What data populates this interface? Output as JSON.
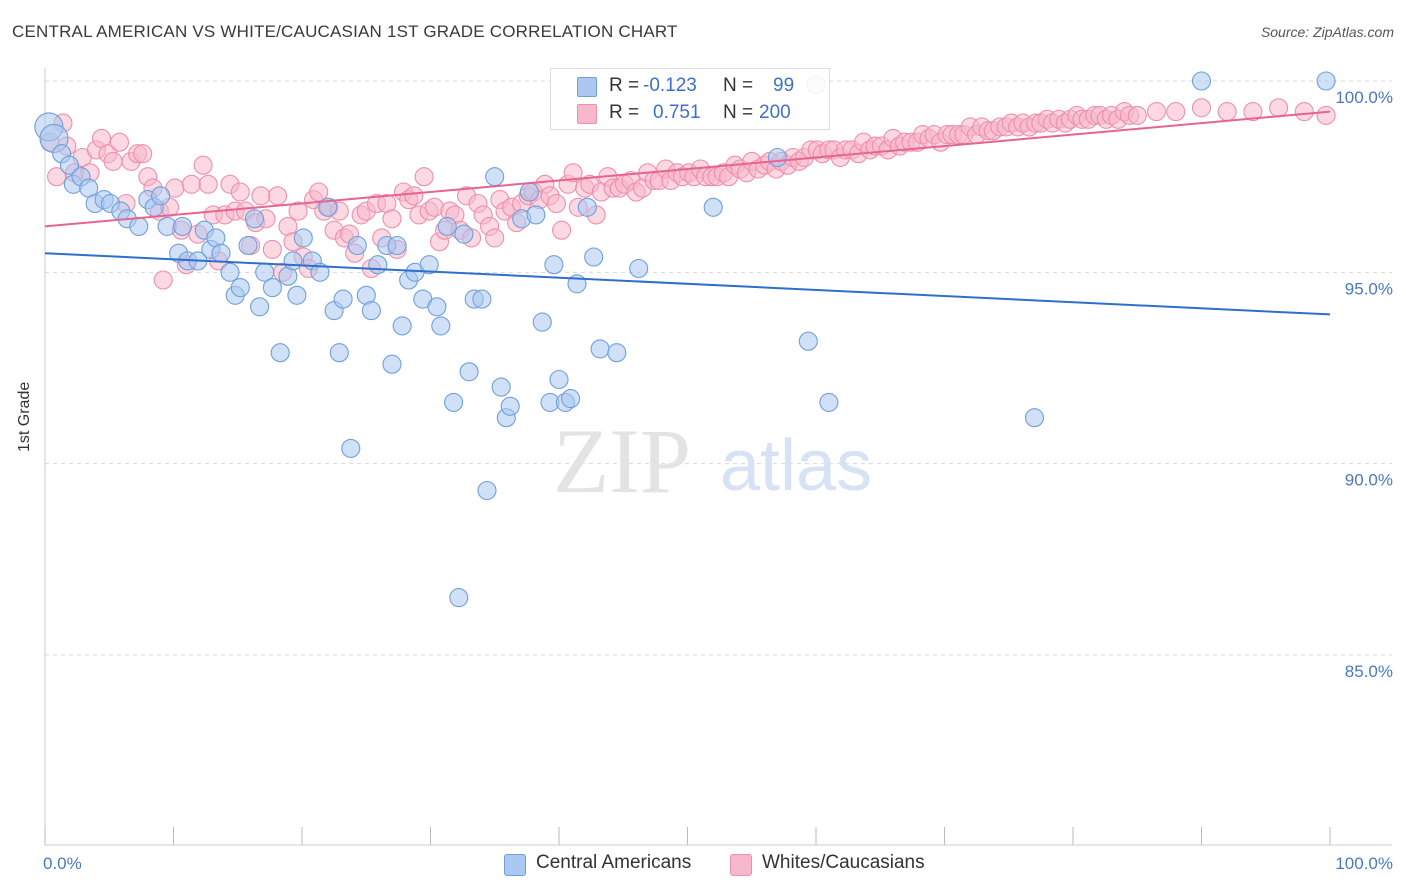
{
  "title": "CENTRAL AMERICAN VS WHITE/CAUCASIAN 1ST GRADE CORRELATION CHART",
  "source": "Source: ZipAtlas.com",
  "watermark": {
    "zip": "ZIP",
    "atlas": "atlas"
  },
  "legend_top": {
    "blue": {
      "r_label": "R =",
      "r_value": "-0.123",
      "n_label": "N =",
      "n_value": "99"
    },
    "pink": {
      "r_label": "R =",
      "r_value": "0.751",
      "n_label": "N =",
      "n_value": "200"
    }
  },
  "legend_bottom": {
    "blue": "Central Americans",
    "pink": "Whites/Caucasians"
  },
  "colors": {
    "blue_fill": "#aac8f0",
    "blue_stroke": "#6f9fdc",
    "blue_line": "#2f6fcc",
    "pink_fill": "#f7b8cb",
    "pink_stroke": "#ee8fab",
    "pink_line": "#e8638d",
    "tick_label": "#4a78c4",
    "grid": "#d8d8d8"
  },
  "chart_data": {
    "type": "scatter",
    "title": "CENTRAL AMERICAN VS WHITE/CAUCASIAN 1ST GRADE CORRELATION CHART",
    "xlabel": "",
    "ylabel": "1st Grade",
    "xlim": [
      0,
      100
    ],
    "ylim": [
      80.5,
      100.8
    ],
    "x_tick_labels": [
      "0.0%",
      "100.0%"
    ],
    "y_ticks": [
      85,
      90,
      95,
      100
    ],
    "y_tick_labels": [
      "85.0%",
      "90.0%",
      "95.0%",
      "100.0%"
    ],
    "grid": "horizontal dashed",
    "legend": "bottom-center",
    "series": [
      {
        "name": "Central Americans",
        "color": "#aac8f0",
        "r": -0.123,
        "n": 99,
        "trend": {
          "x": [
            0,
            100
          ],
          "y": [
            95.5,
            93.9
          ]
        },
        "points": [
          [
            0.3,
            98.8
          ],
          [
            0.7,
            98.5
          ],
          [
            1.3,
            98.1
          ],
          [
            1.9,
            97.8
          ],
          [
            2.2,
            97.3
          ],
          [
            2.8,
            97.5
          ],
          [
            3.4,
            97.2
          ],
          [
            3.9,
            96.8
          ],
          [
            4.6,
            96.9
          ],
          [
            5.1,
            96.8
          ],
          [
            5.9,
            96.6
          ],
          [
            6.4,
            96.4
          ],
          [
            7.3,
            96.2
          ],
          [
            8.0,
            96.9
          ],
          [
            8.5,
            96.7
          ],
          [
            9.0,
            97.0
          ],
          [
            9.5,
            96.2
          ],
          [
            10.4,
            95.5
          ],
          [
            10.7,
            96.2
          ],
          [
            11.1,
            95.3
          ],
          [
            11.9,
            95.3
          ],
          [
            12.4,
            96.1
          ],
          [
            12.9,
            95.6
          ],
          [
            13.3,
            95.9
          ],
          [
            13.7,
            95.5
          ],
          [
            14.4,
            95.0
          ],
          [
            14.8,
            94.4
          ],
          [
            15.2,
            94.6
          ],
          [
            15.8,
            95.7
          ],
          [
            16.3,
            96.4
          ],
          [
            16.7,
            94.1
          ],
          [
            17.1,
            95.0
          ],
          [
            17.7,
            94.6
          ],
          [
            18.3,
            92.9
          ],
          [
            18.9,
            94.9
          ],
          [
            19.3,
            95.3
          ],
          [
            19.6,
            94.4
          ],
          [
            20.1,
            95.9
          ],
          [
            20.8,
            95.3
          ],
          [
            21.4,
            95.0
          ],
          [
            22.0,
            96.7
          ],
          [
            22.5,
            94.0
          ],
          [
            22.9,
            92.9
          ],
          [
            23.2,
            94.3
          ],
          [
            23.8,
            90.4
          ],
          [
            24.3,
            95.7
          ],
          [
            25.0,
            94.4
          ],
          [
            25.4,
            94.0
          ],
          [
            25.9,
            95.2
          ],
          [
            26.6,
            95.7
          ],
          [
            27.0,
            92.6
          ],
          [
            27.4,
            95.7
          ],
          [
            27.8,
            93.6
          ],
          [
            28.3,
            94.8
          ],
          [
            28.8,
            95.0
          ],
          [
            29.4,
            94.3
          ],
          [
            29.9,
            95.2
          ],
          [
            30.5,
            94.1
          ],
          [
            30.8,
            93.6
          ],
          [
            31.3,
            96.2
          ],
          [
            31.8,
            91.6
          ],
          [
            32.2,
            86.5
          ],
          [
            32.6,
            96.0
          ],
          [
            33.0,
            92.4
          ],
          [
            33.4,
            94.3
          ],
          [
            34.0,
            94.3
          ],
          [
            34.4,
            89.3
          ],
          [
            35.0,
            97.5
          ],
          [
            35.5,
            92.0
          ],
          [
            35.9,
            91.2
          ],
          [
            36.2,
            91.5
          ],
          [
            37.1,
            96.4
          ],
          [
            37.7,
            97.1
          ],
          [
            38.2,
            96.5
          ],
          [
            38.7,
            93.7
          ],
          [
            39.3,
            91.6
          ],
          [
            39.6,
            95.2
          ],
          [
            40.0,
            92.2
          ],
          [
            40.5,
            91.6
          ],
          [
            40.9,
            91.7
          ],
          [
            41.4,
            94.7
          ],
          [
            42.2,
            96.7
          ],
          [
            42.7,
            95.4
          ],
          [
            43.2,
            93.0
          ],
          [
            44.5,
            92.9
          ],
          [
            46.2,
            95.1
          ],
          [
            49.2,
            100.0
          ],
          [
            52.0,
            96.7
          ],
          [
            57.0,
            98.0
          ],
          [
            59.4,
            93.2
          ],
          [
            60.0,
            99.9
          ],
          [
            61.0,
            91.6
          ],
          [
            77.0,
            91.2
          ],
          [
            90.0,
            100.0
          ],
          [
            99.7,
            100.0
          ]
        ]
      },
      {
        "name": "Whites/Caucasians",
        "color": "#f7b8cb",
        "r": 0.751,
        "n": 200,
        "trend": {
          "x": [
            0,
            100
          ],
          "y": [
            96.2,
            99.2
          ]
        },
        "points": [
          [
            0.4,
            98.4
          ],
          [
            0.9,
            97.5
          ],
          [
            1.4,
            98.9
          ],
          [
            1.7,
            98.3
          ],
          [
            2.3,
            97.6
          ],
          [
            2.9,
            98.0
          ],
          [
            3.5,
            97.6
          ],
          [
            4.0,
            98.2
          ],
          [
            4.4,
            98.5
          ],
          [
            4.9,
            98.1
          ],
          [
            5.3,
            97.9
          ],
          [
            5.8,
            98.4
          ],
          [
            6.3,
            96.8
          ],
          [
            6.7,
            97.9
          ],
          [
            7.2,
            98.1
          ],
          [
            7.6,
            98.1
          ],
          [
            8.0,
            97.5
          ],
          [
            8.4,
            97.2
          ],
          [
            8.9,
            96.6
          ],
          [
            9.2,
            94.8
          ],
          [
            9.7,
            96.7
          ],
          [
            10.1,
            97.2
          ],
          [
            10.6,
            96.1
          ],
          [
            11.0,
            95.2
          ],
          [
            11.4,
            97.3
          ],
          [
            11.9,
            96.0
          ],
          [
            12.3,
            97.8
          ],
          [
            12.7,
            97.3
          ],
          [
            13.1,
            96.5
          ],
          [
            13.5,
            95.3
          ],
          [
            14.0,
            96.5
          ],
          [
            14.4,
            97.3
          ],
          [
            14.8,
            96.6
          ],
          [
            15.2,
            97.1
          ],
          [
            15.6,
            96.6
          ],
          [
            16.0,
            95.7
          ],
          [
            16.4,
            96.3
          ],
          [
            16.8,
            97.0
          ],
          [
            17.2,
            96.4
          ],
          [
            17.7,
            95.6
          ],
          [
            18.1,
            97.0
          ],
          [
            18.5,
            95.0
          ],
          [
            18.9,
            96.2
          ],
          [
            19.3,
            95.8
          ],
          [
            19.7,
            96.6
          ],
          [
            20.1,
            95.4
          ],
          [
            20.5,
            95.1
          ],
          [
            20.9,
            96.9
          ],
          [
            21.3,
            97.1
          ],
          [
            21.7,
            96.6
          ],
          [
            22.1,
            96.7
          ],
          [
            22.5,
            96.1
          ],
          [
            22.9,
            96.6
          ],
          [
            23.3,
            95.9
          ],
          [
            23.7,
            96.0
          ],
          [
            24.1,
            95.5
          ],
          [
            24.6,
            96.5
          ],
          [
            25.0,
            96.6
          ],
          [
            25.4,
            95.1
          ],
          [
            25.8,
            96.8
          ],
          [
            26.2,
            95.9
          ],
          [
            26.6,
            96.8
          ],
          [
            27.0,
            96.4
          ],
          [
            27.4,
            95.6
          ],
          [
            27.9,
            97.1
          ],
          [
            28.3,
            96.9
          ],
          [
            28.7,
            97.0
          ],
          [
            29.1,
            96.5
          ],
          [
            29.5,
            97.5
          ],
          [
            29.9,
            96.6
          ],
          [
            30.3,
            96.7
          ],
          [
            30.7,
            95.8
          ],
          [
            31.1,
            96.1
          ],
          [
            31.5,
            96.6
          ],
          [
            31.9,
            96.5
          ],
          [
            32.3,
            96.1
          ],
          [
            32.8,
            97.0
          ],
          [
            33.2,
            95.9
          ],
          [
            33.7,
            96.8
          ],
          [
            34.1,
            96.5
          ],
          [
            34.6,
            96.2
          ],
          [
            35.0,
            95.9
          ],
          [
            35.4,
            96.9
          ],
          [
            35.8,
            96.6
          ],
          [
            36.3,
            96.7
          ],
          [
            36.7,
            96.3
          ],
          [
            37.1,
            96.8
          ],
          [
            37.6,
            97.0
          ],
          [
            38.0,
            97.1
          ],
          [
            38.5,
            96.9
          ],
          [
            38.9,
            97.3
          ],
          [
            39.3,
            97.0
          ],
          [
            39.8,
            96.8
          ],
          [
            40.2,
            96.1
          ],
          [
            40.7,
            97.3
          ],
          [
            41.1,
            97.6
          ],
          [
            41.5,
            96.7
          ],
          [
            42.0,
            97.2
          ],
          [
            42.4,
            97.3
          ],
          [
            42.9,
            96.5
          ],
          [
            43.3,
            97.1
          ],
          [
            43.8,
            97.5
          ],
          [
            44.2,
            97.2
          ],
          [
            44.7,
            97.2
          ],
          [
            45.1,
            97.3
          ],
          [
            45.6,
            97.4
          ],
          [
            46.0,
            97.1
          ],
          [
            46.5,
            97.2
          ],
          [
            46.9,
            97.6
          ],
          [
            47.4,
            97.4
          ],
          [
            47.8,
            97.4
          ],
          [
            48.3,
            97.7
          ],
          [
            48.7,
            97.4
          ],
          [
            49.2,
            97.6
          ],
          [
            49.6,
            97.5
          ],
          [
            50.1,
            97.6
          ],
          [
            50.5,
            97.5
          ],
          [
            51.0,
            97.7
          ],
          [
            51.4,
            97.5
          ],
          [
            51.9,
            97.5
          ],
          [
            52.3,
            97.5
          ],
          [
            52.8,
            97.6
          ],
          [
            53.2,
            97.5
          ],
          [
            53.7,
            97.8
          ],
          [
            54.1,
            97.7
          ],
          [
            54.6,
            97.6
          ],
          [
            55.0,
            97.9
          ],
          [
            55.5,
            97.7
          ],
          [
            56.0,
            97.8
          ],
          [
            56.4,
            97.9
          ],
          [
            56.9,
            97.7
          ],
          [
            57.3,
            97.9
          ],
          [
            57.8,
            97.8
          ],
          [
            58.2,
            98.0
          ],
          [
            58.7,
            97.9
          ],
          [
            59.1,
            98.0
          ],
          [
            59.6,
            98.2
          ],
          [
            60.1,
            98.2
          ],
          [
            60.5,
            98.1
          ],
          [
            61.0,
            98.2
          ],
          [
            61.4,
            98.2
          ],
          [
            61.9,
            98.0
          ],
          [
            62.3,
            98.2
          ],
          [
            62.8,
            98.2
          ],
          [
            63.3,
            98.1
          ],
          [
            63.7,
            98.4
          ],
          [
            64.2,
            98.2
          ],
          [
            64.6,
            98.3
          ],
          [
            65.1,
            98.3
          ],
          [
            65.6,
            98.2
          ],
          [
            66.0,
            98.5
          ],
          [
            66.5,
            98.3
          ],
          [
            66.9,
            98.4
          ],
          [
            67.4,
            98.4
          ],
          [
            67.9,
            98.4
          ],
          [
            68.3,
            98.6
          ],
          [
            68.8,
            98.5
          ],
          [
            69.2,
            98.6
          ],
          [
            69.7,
            98.4
          ],
          [
            70.2,
            98.6
          ],
          [
            70.6,
            98.6
          ],
          [
            71.1,
            98.6
          ],
          [
            71.5,
            98.6
          ],
          [
            72.0,
            98.8
          ],
          [
            72.5,
            98.6
          ],
          [
            72.9,
            98.8
          ],
          [
            73.4,
            98.7
          ],
          [
            73.8,
            98.7
          ],
          [
            74.3,
            98.8
          ],
          [
            74.8,
            98.8
          ],
          [
            75.2,
            98.9
          ],
          [
            75.7,
            98.8
          ],
          [
            76.1,
            98.9
          ],
          [
            76.6,
            98.8
          ],
          [
            77.1,
            98.9
          ],
          [
            77.5,
            98.9
          ],
          [
            78.0,
            99.0
          ],
          [
            78.4,
            98.9
          ],
          [
            78.9,
            99.0
          ],
          [
            79.4,
            98.9
          ],
          [
            79.8,
            99.0
          ],
          [
            80.3,
            99.1
          ],
          [
            80.7,
            99.0
          ],
          [
            81.2,
            99.0
          ],
          [
            81.7,
            99.1
          ],
          [
            82.1,
            99.1
          ],
          [
            82.6,
            99.0
          ],
          [
            83.0,
            99.1
          ],
          [
            83.5,
            99.0
          ],
          [
            84.0,
            99.2
          ],
          [
            84.4,
            99.1
          ],
          [
            85.0,
            99.1
          ],
          [
            86.5,
            99.2
          ],
          [
            88.0,
            99.2
          ],
          [
            90.0,
            99.3
          ],
          [
            92.0,
            99.2
          ],
          [
            94.0,
            99.2
          ],
          [
            96.0,
            99.3
          ],
          [
            98.0,
            99.2
          ],
          [
            99.7,
            99.1
          ]
        ]
      }
    ]
  }
}
